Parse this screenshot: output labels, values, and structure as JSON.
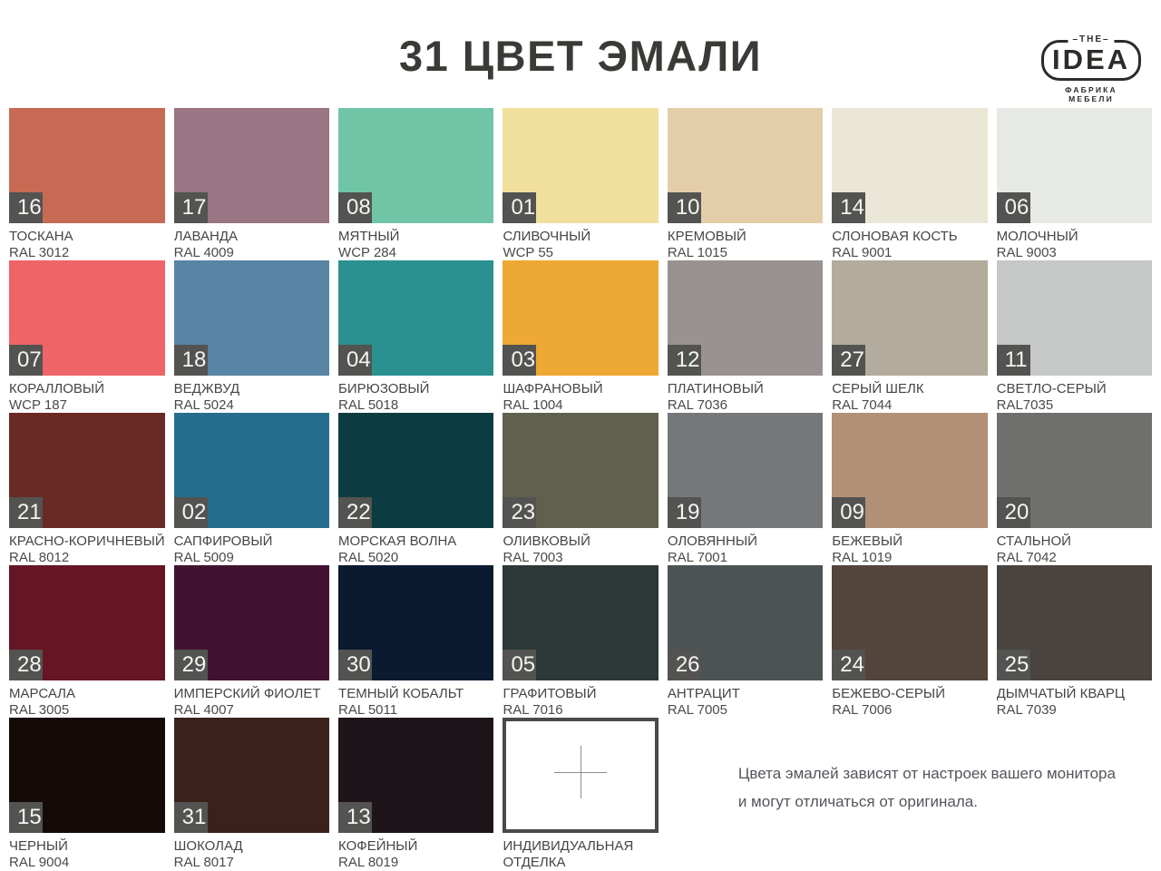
{
  "title": "31 ЦВЕТ ЭМАЛИ",
  "logo": {
    "the": "THE",
    "idea": "IDEA",
    "subtitle": "ФАБРИКА МЕБЕЛИ"
  },
  "badge_color": "#535351",
  "disclaimer": {
    "line1": "Цвета эмалей зависят от настроек  вашего монитора",
    "line2": "и могут отличаться  от оригинала."
  },
  "custom_swatch": {
    "label_line1": "ИНДИВИДУАЛЬНАЯ",
    "label_line2": "ОТДЕЛКА",
    "icon": "plus-icon"
  },
  "swatches": [
    {
      "num": "16",
      "name": "ТОСКАНА",
      "code": "RAL 3012",
      "color": "#C66A54"
    },
    {
      "num": "17",
      "name": "ЛАВАНДА",
      "code": "RAL 4009",
      "color": "#9A7584"
    },
    {
      "num": "08",
      "name": "МЯТНЫЙ",
      "code": "WCP 284",
      "color": "#70C5A6"
    },
    {
      "num": "01",
      "name": "СЛИВОЧНЫЙ",
      "code": "WCP 55",
      "color": "#F1DF9E"
    },
    {
      "num": "10",
      "name": "КРЕМОВЫЙ",
      "code": "RAL 1015",
      "color": "#E3CEA9"
    },
    {
      "num": "14",
      "name": "СЛОНОВАЯ КОСТЬ",
      "code": "RAL 9001",
      "color": "#EBE7D7"
    },
    {
      "num": "06",
      "name": "МОЛОЧНЫЙ",
      "code": "RAL 9003",
      "color": "#E7E9E5"
    },
    {
      "num": "07",
      "name": "КОРАЛЛОВЫЙ",
      "code": "WCP 187",
      "color": "#EE6467"
    },
    {
      "num": "18",
      "name": "ВЕДЖВУД",
      "code": "RAL 5024",
      "color": "#5884A5"
    },
    {
      "num": "04",
      "name": "БИРЮЗОВЫЙ",
      "code": "RAL 5018",
      "color": "#2A9090"
    },
    {
      "num": "03",
      "name": "ШАФРАНОВЫЙ",
      "code": "RAL 1004",
      "color": "#EDA933"
    },
    {
      "num": "12",
      "name": "ПЛАТИНОВЫЙ",
      "code": "RAL 7036",
      "color": "#9A9290"
    },
    {
      "num": "27",
      "name": "СЕРЫЙ ШЕЛК",
      "code": "RAL 7044",
      "color": "#B3AC9D"
    },
    {
      "num": "11",
      "name": "СВЕТЛО-СЕРЫЙ",
      "code": "RAL7035",
      "color": "#C5C8C6"
    },
    {
      "num": "21",
      "name": "КРАСНО-КОРИЧНЕВЫЙ",
      "code": "RAL 8012",
      "color": "#692A25"
    },
    {
      "num": "02",
      "name": "САПФИРОВЫЙ",
      "code": "RAL 5009",
      "color": "#256E8E"
    },
    {
      "num": "22",
      "name": "МОРСКАЯ ВОЛНА",
      "code": "RAL 5020",
      "color": "#0C3C42"
    },
    {
      "num": "23",
      "name": "ОЛИВКОВЫЙ",
      "code": "RAL 7003",
      "color": "#61604E"
    },
    {
      "num": "19",
      "name": "ОЛОВЯННЫЙ",
      "code": "RAL 7001",
      "color": "#75787A"
    },
    {
      "num": "09",
      "name": "БЕЖЕВЫЙ",
      "code": "RAL 1019",
      "color": "#B29076"
    },
    {
      "num": "20",
      "name": "СТАЛЬНОЙ",
      "code": "RAL 7042",
      "color": "#6F706E"
    },
    {
      "num": "28",
      "name": "МАРСАЛА",
      "code": "RAL 3005",
      "color": "#651523"
    },
    {
      "num": "29",
      "name": "ИМПЕРСКИЙ ФИОЛЕТ",
      "code": "RAL 4007",
      "color": "#421231"
    },
    {
      "num": "30",
      "name": "ТЕМНЫЙ КОБАЛЬТ",
      "code": "RAL 5011",
      "color": "#0B1A31"
    },
    {
      "num": "05",
      "name": "ГРАФИТОВЫЙ",
      "code": "RAL 7016",
      "color": "#2C3838"
    },
    {
      "num": "26",
      "name": "АНТРАЦИТ",
      "code": "RAL 7005",
      "color": "#4C5355"
    },
    {
      "num": "24",
      "name": "БЕЖЕВО-СЕРЫЙ",
      "code": "RAL 7006",
      "color": "#53453C"
    },
    {
      "num": "25",
      "name": "ДЫМЧАТЫЙ КВАРЦ",
      "code": "RAL 7039",
      "color": "#494440"
    },
    {
      "num": "15",
      "name": "ЧЕРНЫЙ",
      "code": "RAL 9004",
      "color": "#140A08"
    },
    {
      "num": "31",
      "name": "ШОКОЛАД",
      "code": "RAL 8017",
      "color": "#3A221B"
    },
    {
      "num": "13",
      "name": "КОФЕЙНЫЙ",
      "code": "RAL 8019",
      "color": "#1E151A"
    }
  ]
}
